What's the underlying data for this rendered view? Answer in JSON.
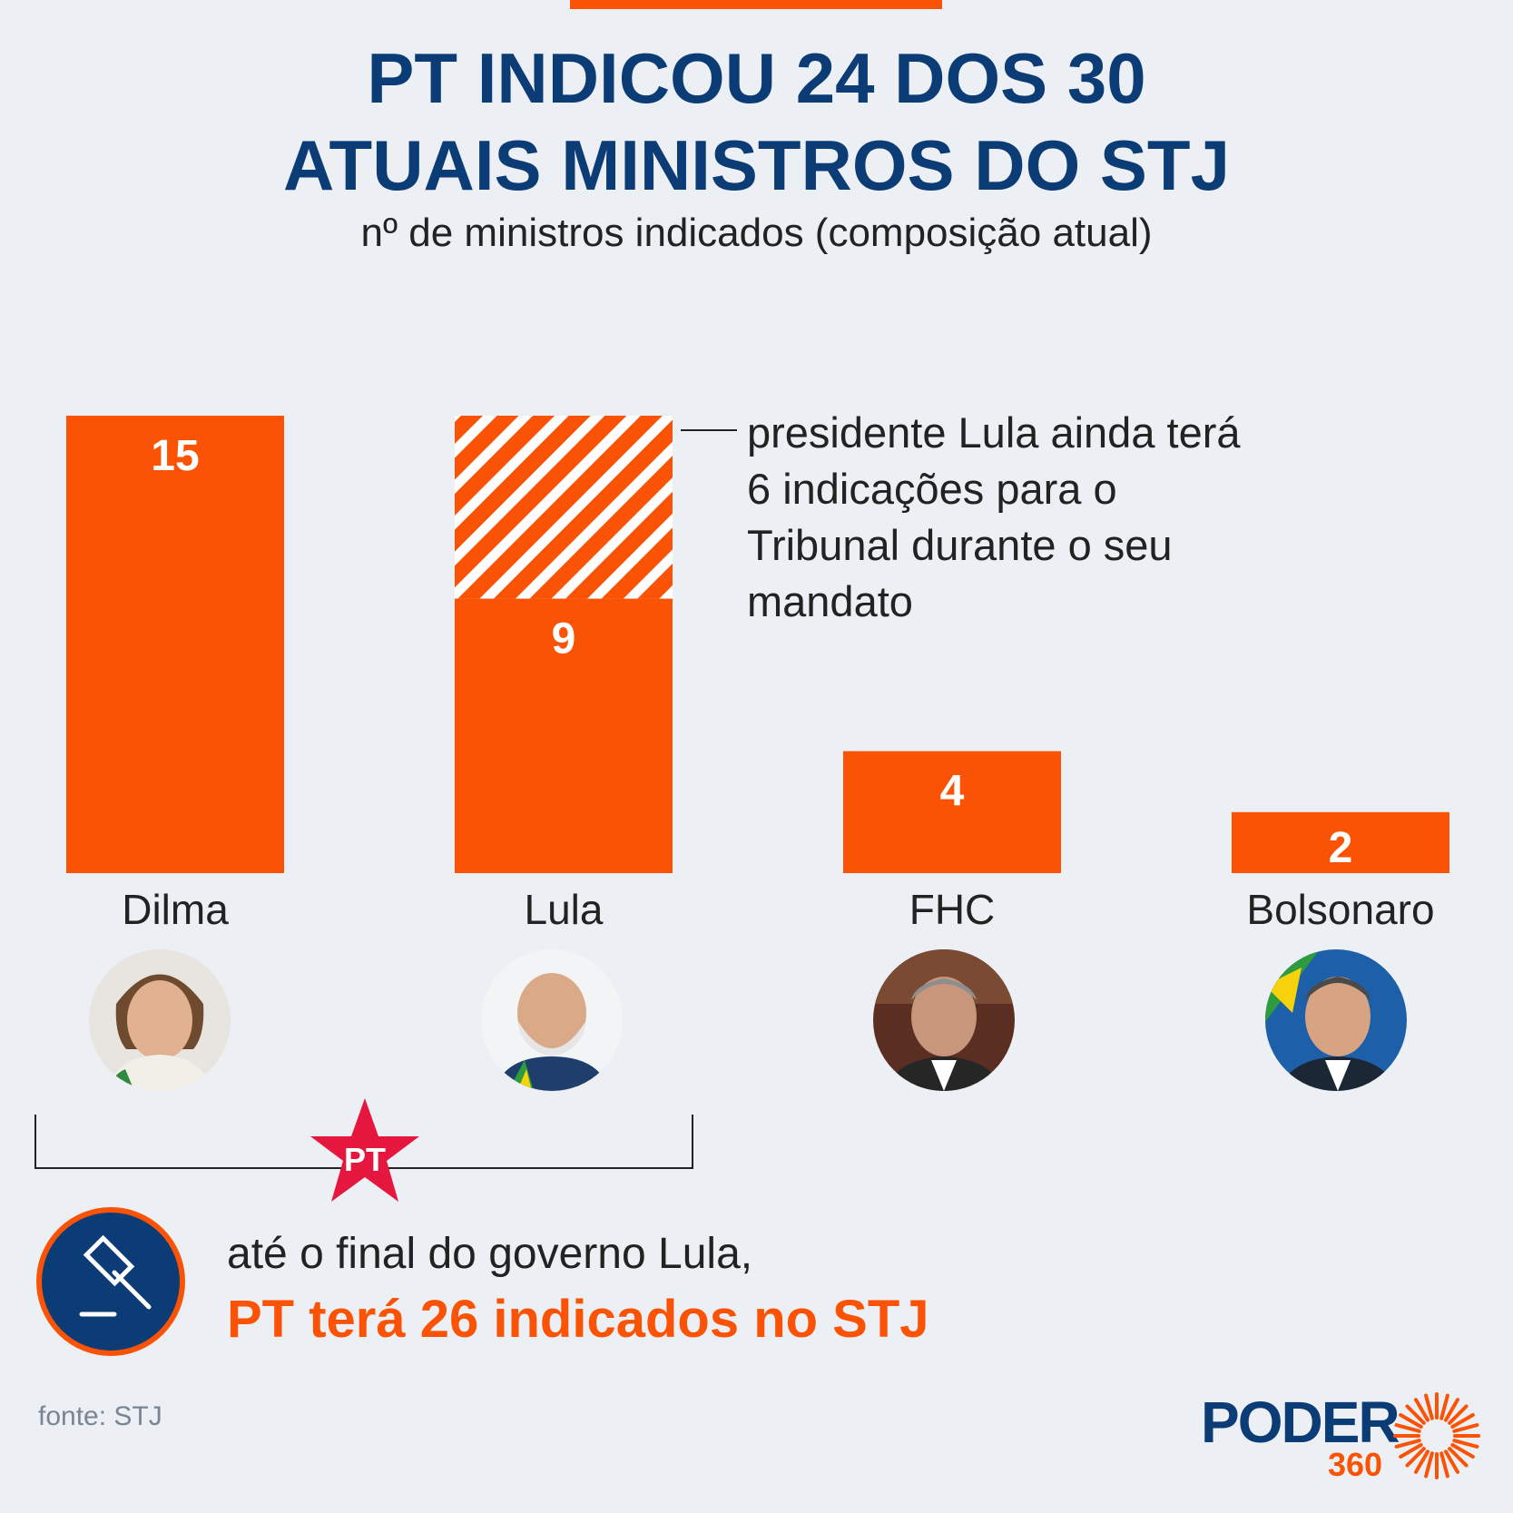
{
  "header": {
    "title_line1": "PT INDICOU 24 DOS 30",
    "title_line2": "ATUAIS MINISTROS DO STJ",
    "subtitle": "nº de ministros indicados (composição atual)"
  },
  "chart_data": {
    "type": "bar",
    "categories": [
      "Dilma",
      "Lula",
      "FHC",
      "Bolsonaro"
    ],
    "values": [
      15,
      9,
      4,
      2
    ],
    "stacked_pending": {
      "category": "Lula",
      "value": 6,
      "pattern": "hatched"
    },
    "value_labels": [
      "15",
      "9",
      "4",
      "2"
    ],
    "ylim": [
      0,
      15
    ],
    "grid": false,
    "colors": {
      "bar": "#FA5305",
      "hatch": "#FFFFFF"
    }
  },
  "annotation": {
    "text": "presidente Lula ainda terá 6 indicações para o Tribunal durante o seu mandato"
  },
  "party_badge": {
    "label": "PT",
    "icon": "star-icon",
    "color": "#E5173F"
  },
  "footer": {
    "icon": "gavel-icon",
    "line1": "até o final do governo Lula,",
    "line2": "PT terá 26 indicados no STJ"
  },
  "source": "fonte: STJ",
  "logo": {
    "word": "PODER",
    "number": "360"
  },
  "colors": {
    "accent": "#FA5305",
    "title": "#0C3C76",
    "background": "#ECEFF3"
  }
}
